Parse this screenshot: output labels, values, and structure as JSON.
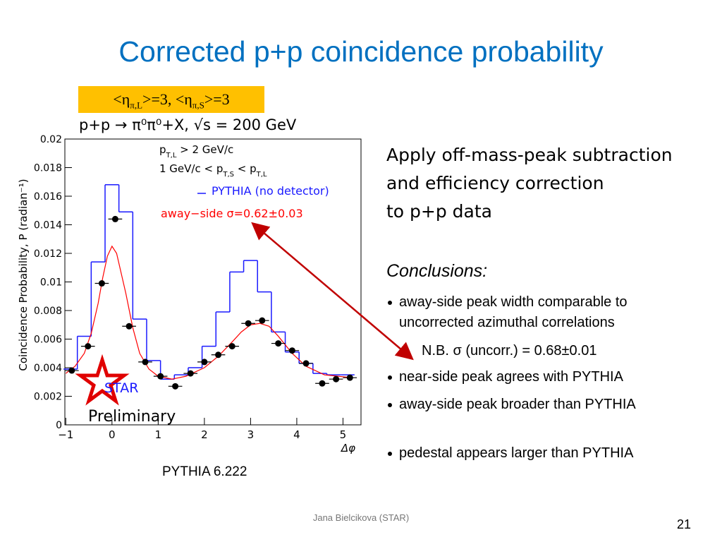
{
  "title": "Corrected p+p coincidence probability",
  "eta_box": [
    {
      "text": "<η"
    },
    {
      "text": "π,L",
      "sub": true
    },
    {
      "text": ">=3, <η"
    },
    {
      "text": "π,S",
      "sub": true
    },
    {
      "text": ">=3"
    }
  ],
  "apply": [
    "Apply off-mass-peak subtraction",
    "and efficiency correction",
    " to p+p data"
  ],
  "conclusions_heading": "Conclusions:",
  "conclusions": [
    "away-side peak width comparable to uncorrected azimuthal correlations",
    "near-side peak agrees with PYTHIA",
    "away-side peak broader than PYTHIA",
    "pedestal appears larger than PYTHIA"
  ],
  "note": "N.B.  σ (uncorr.) = 0.68±0.01",
  "caption": "PYTHIA 6.222",
  "footer": "Jana Bielcikova (STAR)",
  "page": "21",
  "chart_data": {
    "type": "histogram",
    "header": "p+p  →  π⁰π⁰+X, √s = 200 GeV",
    "cuts": [
      [
        {
          "text": "p"
        },
        {
          "text": "T,L",
          "sub": true
        },
        {
          "text": " > 2 GeV/c"
        }
      ],
      [
        {
          "text": "1 GeV/c < p"
        },
        {
          "text": "T,S",
          "sub": true
        },
        {
          "text": " < p"
        },
        {
          "text": "T,L",
          "sub": true
        }
      ]
    ],
    "xlabel": "Δφ",
    "ylabel": "Coincidence Probability, P (radian⁻¹)",
    "logo": "STAR",
    "watermark": "Preliminary",
    "xlim": [
      -1.02,
      5.39
    ],
    "ylim": [
      0,
      0.02
    ],
    "xticks": [
      {
        "value": -1,
        "label": "−1"
      },
      0,
      1,
      2,
      3,
      4,
      5
    ],
    "yticks": [
      0,
      0.002,
      0.004,
      0.006,
      0.008,
      0.01,
      0.012,
      0.014,
      0.016,
      0.018,
      0.02
    ],
    "histogram": {
      "name": "PYTHIA (no detector)",
      "color": "#1a1aff",
      "bins": [
        -1.05,
        -0.75,
        -0.45,
        -0.15,
        0.15,
        0.45,
        0.75,
        1.05,
        1.35,
        1.65,
        1.95,
        2.25,
        2.55,
        2.85,
        3.15,
        3.45,
        3.75,
        4.05,
        4.35,
        4.65,
        4.95,
        5.25
      ],
      "counts": [
        0.0039,
        0.0062,
        0.0114,
        0.0168,
        0.0149,
        0.0074,
        0.0045,
        0.0032,
        0.0035,
        0.004,
        0.0055,
        0.0079,
        0.0107,
        0.0115,
        0.0093,
        0.0065,
        0.0051,
        0.0043,
        0.0036,
        0.0035,
        0.0035
      ]
    },
    "fit": {
      "name": "away−side σ=0.62±0.03",
      "color": "#ff0000",
      "x": [
        -1,
        -0.8,
        -0.6,
        -0.45,
        -0.3,
        -0.2,
        -0.1,
        0,
        0.1,
        0.2,
        0.3,
        0.45,
        0.6,
        0.8,
        1,
        1.3,
        1.6,
        2,
        2.3,
        2.6,
        2.8,
        3,
        3.2,
        3.4,
        3.6,
        3.9,
        4.2,
        4.6,
        5.2
      ],
      "y": [
        0.0036,
        0.0041,
        0.005,
        0.0064,
        0.0085,
        0.0103,
        0.0118,
        0.0125,
        0.012,
        0.0106,
        0.0092,
        0.0068,
        0.005,
        0.0039,
        0.0034,
        0.0032,
        0.0034,
        0.004,
        0.0048,
        0.0058,
        0.0065,
        0.007,
        0.0071,
        0.0069,
        0.0062,
        0.005,
        0.0041,
        0.0035,
        0.0033
      ]
    },
    "points": {
      "xerr": 0.15,
      "x": [
        -0.87,
        -0.52,
        -0.22,
        0.07,
        0.37,
        0.72,
        1.05,
        1.37,
        1.7,
        2.0,
        2.3,
        2.6,
        2.95,
        3.25,
        3.6,
        3.9,
        4.2,
        4.55,
        4.85,
        5.15
      ],
      "y": [
        0.0038,
        0.0055,
        0.0099,
        0.0144,
        0.0069,
        0.0044,
        0.0034,
        0.0027,
        0.0036,
        0.0044,
        0.0049,
        0.0055,
        0.0071,
        0.0073,
        0.0057,
        0.0052,
        0.0043,
        0.0029,
        0.0032,
        0.0033
      ]
    }
  }
}
